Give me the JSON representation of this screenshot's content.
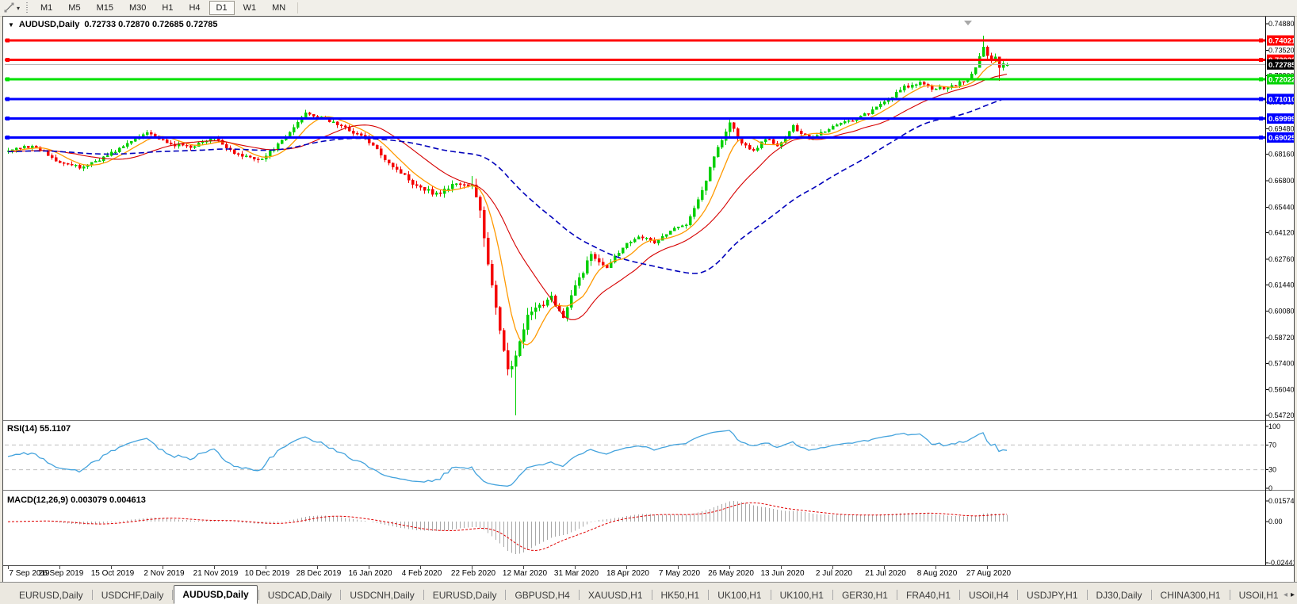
{
  "toolbar": {
    "timeframes": [
      "M1",
      "M5",
      "M15",
      "M30",
      "H1",
      "H4",
      "D1",
      "W1",
      "MN"
    ],
    "active_timeframe": "D1"
  },
  "chart": {
    "symbol_period": "AUDUSD,Daily",
    "ohlc": "0.72733 0.72870 0.72685 0.72785"
  },
  "price_axis": {
    "ticks": [
      "0.74880",
      "0.73520",
      "0.72200",
      "0.70840",
      "0.69480",
      "0.68160",
      "0.66800",
      "0.65440",
      "0.64120",
      "0.62760",
      "0.61440",
      "0.60080",
      "0.58720",
      "0.57400",
      "0.56040",
      "0.54720"
    ],
    "badges": [
      {
        "text": "0.74021",
        "price": 0.74021,
        "color": "#FF0000"
      },
      {
        "text": "0.73033",
        "price": 0.73033,
        "color": "#FF0000"
      },
      {
        "text": "0.72785",
        "price": 0.72785,
        "color": "#000000"
      },
      {
        "text": "0.72022",
        "price": 0.72022,
        "color": "#00D300"
      },
      {
        "text": "0.71010",
        "price": 0.7101,
        "color": "#0000FF"
      },
      {
        "text": "0.69999",
        "price": 0.69999,
        "color": "#0000FF"
      },
      {
        "text": "0.69025",
        "price": 0.69025,
        "color": "#0000FF"
      }
    ]
  },
  "chart_data": {
    "type": "candlestick",
    "symbol": "AUDUSD",
    "timeframe": "Daily",
    "current_ohlc": {
      "open": 0.72733,
      "high": 0.7287,
      "low": 0.72685,
      "close": 0.72785
    },
    "price_range": [
      0.5472,
      0.7488
    ],
    "x_labels": [
      "7 Sep 2019",
      "26 Sep 2019",
      "15 Oct 2019",
      "2 Nov 2019",
      "21 Nov 2019",
      "10 Dec 2019",
      "28 Dec 2019",
      "16 Jan 2020",
      "4 Feb 2020",
      "22 Feb 2020",
      "12 Mar 2020",
      "31 Mar 2020",
      "18 Apr 2020",
      "7 May 2020",
      "26 May 2020",
      "13 Jun 2020",
      "2 Jul 2020",
      "21 Jul 2020",
      "8 Aug 2020",
      "27 Aug 2020"
    ],
    "candles_per_label": 13,
    "close_path_anchors": [
      [
        0,
        0.683
      ],
      [
        4,
        0.6862
      ],
      [
        8,
        0.684
      ],
      [
        12,
        0.6788
      ],
      [
        18,
        0.6745
      ],
      [
        24,
        0.68
      ],
      [
        30,
        0.6868
      ],
      [
        35,
        0.6935
      ],
      [
        40,
        0.687
      ],
      [
        46,
        0.6856
      ],
      [
        52,
        0.6898
      ],
      [
        58,
        0.6812
      ],
      [
        64,
        0.679
      ],
      [
        70,
        0.69
      ],
      [
        75,
        0.7035
      ],
      [
        78,
        0.701
      ],
      [
        82,
        0.698
      ],
      [
        86,
        0.694
      ],
      [
        90,
        0.69
      ],
      [
        96,
        0.6775
      ],
      [
        102,
        0.667
      ],
      [
        108,
        0.661
      ],
      [
        113,
        0.6668
      ],
      [
        117,
        0.665
      ],
      [
        119,
        0.652
      ],
      [
        121,
        0.626
      ],
      [
        124,
        0.589
      ],
      [
        126,
        0.573
      ],
      [
        128,
        0.576
      ],
      [
        129,
        0.585
      ],
      [
        131,
        0.597
      ],
      [
        134,
        0.603
      ],
      [
        137,
        0.609
      ],
      [
        140,
        0.597
      ],
      [
        143,
        0.6135
      ],
      [
        147,
        0.63
      ],
      [
        151,
        0.624
      ],
      [
        155,
        0.634
      ],
      [
        159,
        0.64
      ],
      [
        163,
        0.636
      ],
      [
        167,
        0.642
      ],
      [
        171,
        0.646
      ],
      [
        175,
        0.663
      ],
      [
        179,
        0.6855
      ],
      [
        182,
        0.698
      ],
      [
        185,
        0.687
      ],
      [
        188,
        0.683
      ],
      [
        191,
        0.69
      ],
      [
        194,
        0.6855
      ],
      [
        198,
        0.6957
      ],
      [
        202,
        0.69
      ],
      [
        206,
        0.6937
      ],
      [
        210,
        0.698
      ],
      [
        214,
        0.7
      ],
      [
        218,
        0.704
      ],
      [
        222,
        0.71
      ],
      [
        226,
        0.716
      ],
      [
        230,
        0.718
      ],
      [
        234,
        0.715
      ],
      [
        238,
        0.7168
      ],
      [
        242,
        0.72
      ],
      [
        244,
        0.726
      ],
      [
        246,
        0.7375
      ],
      [
        247,
        0.733
      ],
      [
        248,
        0.7295
      ],
      [
        249,
        0.7315
      ],
      [
        250,
        0.726
      ],
      [
        251,
        0.7278
      ],
      [
        252,
        0.72785
      ]
    ],
    "extremes": {
      "low": {
        "index": 128,
        "price": 0.5472
      },
      "high": {
        "index": 246,
        "price": 0.7427
      },
      "late_dip": {
        "index": 250,
        "price": 0.7195
      }
    },
    "horizontal_lines": [
      {
        "price": 0.74021,
        "color": "#FF0000"
      },
      {
        "price": 0.73033,
        "color": "#FF0000"
      },
      {
        "price": 0.72022,
        "color": "#00E100"
      },
      {
        "price": 0.7101,
        "color": "#0000FF"
      },
      {
        "price": 0.69999,
        "color": "#0000FF"
      },
      {
        "price": 0.69025,
        "color": "#0000FF"
      }
    ],
    "current_price_line": {
      "price": 0.72785,
      "color": "#B6B6B6"
    },
    "moving_averages": [
      {
        "period": 8,
        "color": "#FF9900",
        "style": "solid"
      },
      {
        "period": 21,
        "color": "#D60000",
        "style": "solid"
      },
      {
        "period": 55,
        "color": "#0000BB",
        "style": "dashed"
      }
    ],
    "bull_color": "#00CF00",
    "bear_color": "#F40000"
  },
  "rsi": {
    "name": "RSI(14)",
    "value": "55.1107",
    "axis_labels": [
      "100",
      "70",
      "30",
      "0"
    ],
    "overbought": 70,
    "oversold": 30,
    "line_color": "#44A3DD",
    "level_color": "#BEBEBE"
  },
  "macd": {
    "name": "MACD(12,26,9)",
    "values": "0.003079 0.004613",
    "axis_labels": [
      "0.01574",
      "0.00",
      "-0.02441"
    ],
    "histogram_color": "#A8A8A8",
    "signal_color": "#E00000"
  },
  "tabs": {
    "items": [
      "EURUSD,Daily",
      "USDCHF,Daily",
      "AUDUSD,Daily",
      "USDCAD,Daily",
      "USDCNH,Daily",
      "EURUSD,Daily",
      "GBPUSD,H4",
      "XAUUSD,H1",
      "HK50,H1",
      "UK100,H1",
      "UK100,H1",
      "GER30,H1",
      "FRA40,H1",
      "USOil,H4",
      "USDJPY,H1",
      "DJ30,Daily",
      "CHINA300,H1",
      "USOil,H1"
    ],
    "active_index": 2
  }
}
